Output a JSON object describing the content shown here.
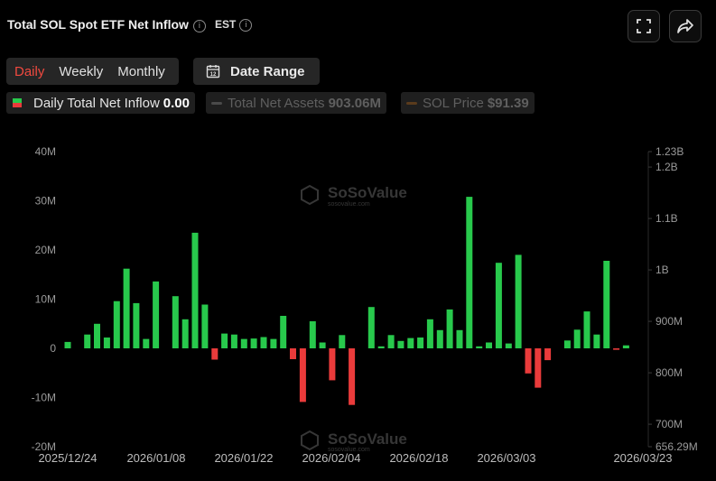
{
  "header": {
    "title": "Total SOL Spot ETF Net Inflow",
    "timezone": "EST"
  },
  "period_tabs": [
    "Daily",
    "Weekly",
    "Monthly"
  ],
  "active_tab": "Daily",
  "date_range_label": "Date Range",
  "legend": {
    "inflow_label": "Daily Total Net Inflow",
    "inflow_value": "0.00",
    "assets_label": "Total Net Assets",
    "assets_value": "903.06M",
    "price_label": "SOL Price",
    "price_value": "$91.39"
  },
  "colors": {
    "positive": "#28c94c",
    "negative": "#ea3b3b",
    "accent": "#f0493f",
    "assets_line": "#4a4a4a",
    "price_line": "#5a3b1c"
  },
  "watermark": {
    "brand": "SoSoValue",
    "url": "sosovalue.com"
  },
  "chart_data": {
    "type": "bar",
    "title": "Total SOL Spot ETF Net Inflow",
    "x_tick_labels": [
      "2025/12/24",
      "2026/01/08",
      "2026/01/22",
      "2026/02/04",
      "2026/02/18",
      "2026/03/03",
      "2026/03/23"
    ],
    "y_left_tick_labels": [
      "40M",
      "30M",
      "20M",
      "10M",
      "0",
      "-10M",
      "-20M"
    ],
    "y_left_range": [
      -20,
      40
    ],
    "y_left_unit": "M",
    "y_right_tick_labels": [
      "1.23B",
      "1.2B",
      "1.1B",
      "1B",
      "900M",
      "800M",
      "700M",
      "656.29M"
    ],
    "y_right_range": [
      656.29,
      1230
    ],
    "grid": false,
    "series": [
      {
        "name": "Daily Total Net Inflow",
        "values": [
          1.3,
          0,
          2.8,
          5.0,
          2.2,
          9.6,
          16.2,
          9.2,
          1.9,
          13.6,
          0,
          10.6,
          5.9,
          23.5,
          8.9,
          -2.3,
          3.0,
          2.8,
          1.9,
          2.0,
          2.3,
          1.9,
          6.6,
          -2.2,
          -10.9,
          5.5,
          1.2,
          -6.5,
          2.7,
          -11.5,
          0,
          8.4,
          0.4,
          2.7,
          1.5,
          2.1,
          2.2,
          5.9,
          3.7,
          7.9,
          3.7,
          30.8,
          0.4,
          1.2,
          17.4,
          1.0,
          19.0,
          -5.1,
          -8.0,
          -2.4,
          0,
          1.6,
          3.8,
          7.5,
          2.8,
          17.8,
          -0.3,
          0.6
        ]
      }
    ]
  }
}
